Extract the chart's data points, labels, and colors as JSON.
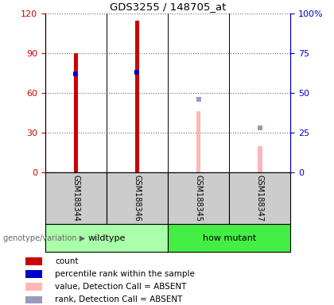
{
  "title": "GDS3255 / 148705_at",
  "samples": [
    "GSM188344",
    "GSM188346",
    "GSM188345",
    "GSM188347"
  ],
  "groups": [
    "wildtype",
    "wildtype",
    "how mutant",
    "how mutant"
  ],
  "count_values": [
    90,
    115,
    null,
    null
  ],
  "count_color": "#cc0000",
  "absent_value_values": [
    null,
    null,
    46,
    20
  ],
  "absent_value_color": "#ffb6b6",
  "percentile_rank_present": [
    62,
    63,
    null,
    null
  ],
  "percentile_rank_absent": [
    null,
    null,
    46,
    28
  ],
  "percentile_color_present": "#0000cc",
  "percentile_color_absent": "#9999bb",
  "ylim_left": [
    0,
    120
  ],
  "ylim_right": [
    0,
    100
  ],
  "yticks_left": [
    0,
    30,
    60,
    90,
    120
  ],
  "yticks_right": [
    0,
    25,
    50,
    75,
    100
  ],
  "wildtype_color": "#aaffaa",
  "howmutant_color": "#44ee44",
  "bg_color": "#ffffff",
  "label_box_color": "#cccccc",
  "bar_width": 0.07,
  "group_label": "genotype/variation"
}
